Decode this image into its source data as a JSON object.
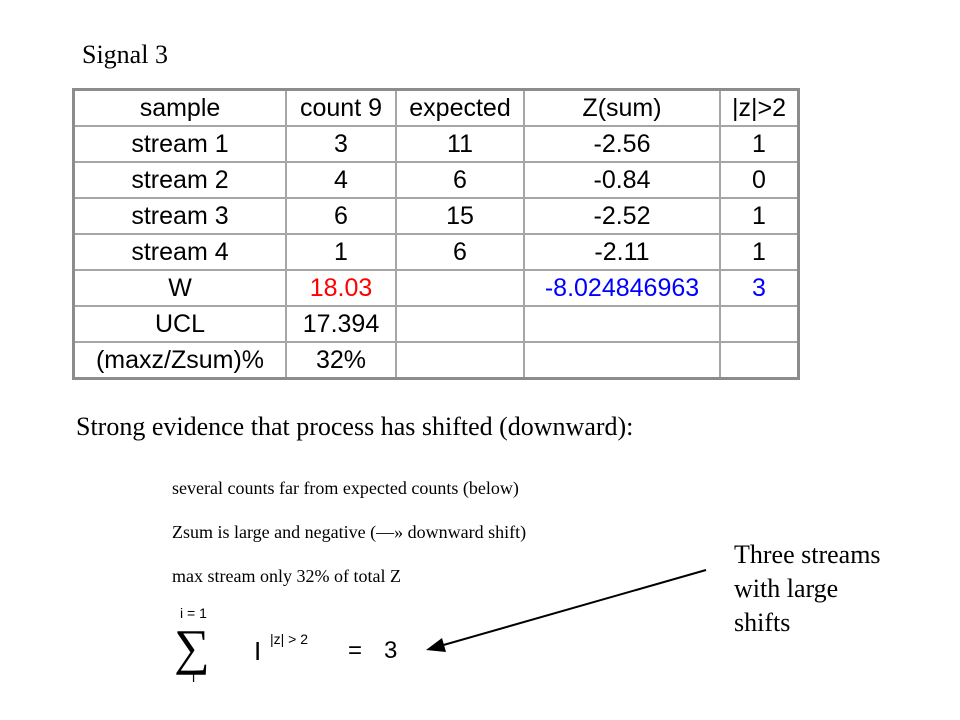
{
  "title": "Signal 3",
  "table": {
    "rows": [
      [
        "sample",
        "count 9",
        "expected",
        "Z(sum)",
        "|z|>2"
      ],
      [
        "stream 1",
        "3",
        "11",
        "-2.56",
        "1"
      ],
      [
        "stream 2",
        "4",
        "6",
        "-0.84",
        "0"
      ],
      [
        "stream 3",
        "6",
        "15",
        "-2.52",
        "1"
      ],
      [
        "stream 4",
        "1",
        "6",
        "-2.11",
        "1"
      ],
      [
        "W",
        "18.03",
        "",
        "-8.024846963",
        "3"
      ],
      [
        "UCL",
        "17.394",
        "",
        "",
        ""
      ],
      [
        "(maxz/Zsum)%",
        "32%",
        "",
        "",
        ""
      ]
    ],
    "highlight_red": "#ff0000",
    "highlight_blue": "#0000ff"
  },
  "evidence": "Strong evidence that process has shifted (downward):",
  "bullets": [
    "several counts far from expected counts (below)",
    "Zsum is large and negative (—» downward shift)",
    "max stream only 32% of total Z"
  ],
  "formula": {
    "sum_symbol": "∑",
    "upper_limit": "i = 1",
    "lower_limit": "i",
    "indicator": "I",
    "condition": "|z| > 2",
    "equals": "=",
    "result": "3"
  },
  "callout": [
    "Three streams",
    "with large",
    "shifts"
  ]
}
